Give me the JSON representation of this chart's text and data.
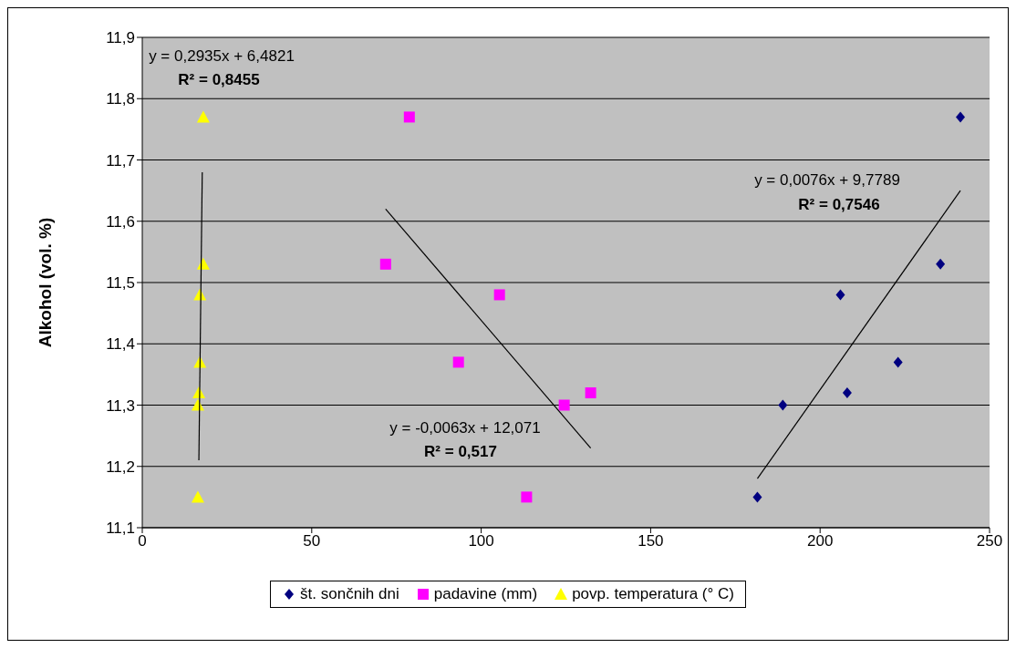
{
  "chart_data": {
    "type": "scatter",
    "ylabel": "Alkohol (vol. %)",
    "xlim": [
      0,
      250
    ],
    "xticks": [
      0,
      50,
      100,
      150,
      200,
      250
    ],
    "ylim": [
      11.1,
      11.9
    ],
    "yticks": [
      {
        "value": 11.1,
        "label": "11,1"
      },
      {
        "value": 11.2,
        "label": "11,2"
      },
      {
        "value": 11.3,
        "label": "11,3"
      },
      {
        "value": 11.4,
        "label": "11,4"
      },
      {
        "value": 11.5,
        "label": "11,5"
      },
      {
        "value": 11.6,
        "label": "11,6"
      },
      {
        "value": 11.7,
        "label": "11,7"
      },
      {
        "value": 11.8,
        "label": "11,8"
      },
      {
        "value": 11.9,
        "label": "11,9"
      }
    ],
    "grid": "y",
    "legend": "bottom",
    "series": [
      {
        "name": "št. sončnih dni",
        "color": "#000080",
        "marker": "diamond",
        "x": [
          181.5,
          189,
          206,
          208,
          223,
          235.5,
          241.4
        ],
        "values": [
          11.15,
          11.3,
          11.48,
          11.32,
          11.37,
          11.53,
          11.77
        ]
      },
      {
        "name": "padavine (mm)",
        "color": "#ff00ff",
        "marker": "square",
        "x": [
          78.8,
          71.8,
          105.4,
          93.3,
          124.5,
          132.3,
          113.4
        ],
        "values": [
          11.77,
          11.53,
          11.48,
          11.37,
          11.3,
          11.32,
          11.15
        ]
      },
      {
        "name": "povp. temperatura (° C)",
        "color": "#ffff00",
        "marker": "triangle",
        "x": [
          18,
          18,
          17,
          17,
          16.7,
          16.4,
          16.4
        ],
        "values": [
          11.77,
          11.53,
          11.48,
          11.37,
          11.32,
          11.3,
          11.15
        ]
      },
      {
        "type": "line",
        "color": "#000000",
        "marker": "none",
        "x": [
          181.5,
          241.4
        ],
        "values": [
          11.18,
          11.65
        ]
      },
      {
        "type": "line",
        "color": "#000000",
        "marker": "none",
        "x": [
          71.8,
          132.3
        ],
        "values": [
          11.62,
          11.23
        ]
      },
      {
        "type": "line",
        "color": "#000000",
        "marker": "none",
        "x": [
          17.7,
          16.7
        ],
        "values": [
          11.68,
          11.21
        ]
      }
    ],
    "annotations": [
      "y = 0,2935x + 6,4821",
      "R² = 0,8455",
      "y = -0,0063x + 12,071",
      "R² = 0,517",
      "y = 0,0076x + 9,7789",
      "R² = 0,7546"
    ]
  }
}
